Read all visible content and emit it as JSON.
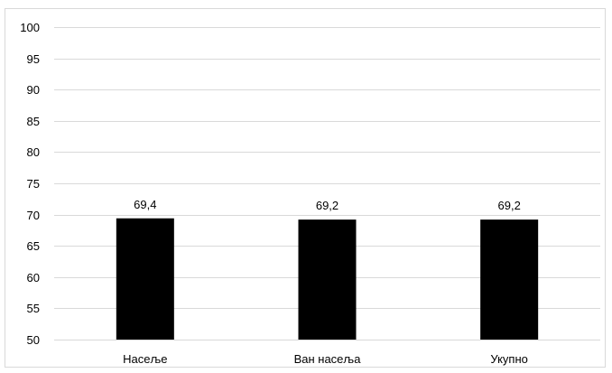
{
  "chart_data": {
    "type": "bar",
    "categories": [
      "Насеље",
      "Ван насеља",
      "Укупно"
    ],
    "values": [
      69.4,
      69.2,
      69.2
    ],
    "data_labels": [
      "69,4",
      "69,2",
      "69,2"
    ],
    "title": "",
    "xlabel": "",
    "ylabel": "",
    "ylim": [
      50,
      100
    ],
    "yticks": [
      50,
      55,
      60,
      65,
      70,
      75,
      80,
      85,
      90,
      95,
      100
    ],
    "grid": true,
    "legend": "none",
    "colors": {
      "bar": "#000000",
      "grid": "#d9d9d9",
      "axis": "#d9d9d9"
    }
  }
}
